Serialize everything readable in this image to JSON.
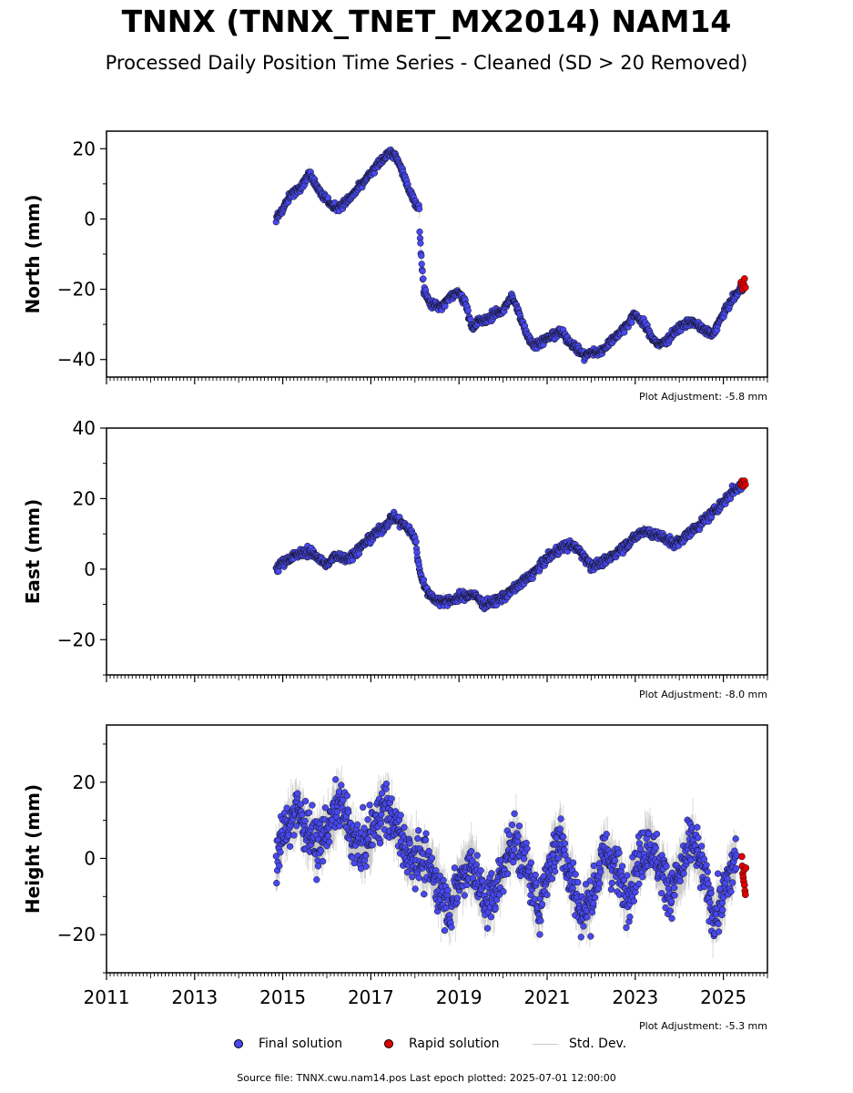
{
  "header": {
    "title": "TNNX (TNNX_TNET_MX2014) NAM14",
    "subtitle": "Processed Daily Position Time Series - Cleaned (SD > 20 Removed)"
  },
  "legend": {
    "final": "Final solution",
    "rapid": "Rapid solution",
    "std": "Std. Dev."
  },
  "footer": {
    "source": "Source file: TNNX.cwu.nam14.pos  Last epoch plotted: 2025-07-01 12:00:00"
  },
  "colors": {
    "final": "#4848f0",
    "rapid": "#e00000",
    "std": "#999999"
  },
  "chart_data": [
    {
      "type": "scatter",
      "ylabel": "North (mm)",
      "adjustment": "Plot Adjustment: -5.8 mm",
      "xlim": [
        2011,
        2026
      ],
      "ylim": [
        -45,
        25
      ],
      "yticks": [
        20,
        0,
        -20,
        -40
      ],
      "ytick_labels": [
        "20",
        "0",
        "−20",
        "−40"
      ],
      "noise": 0.8,
      "std_band": 1.2,
      "series": [
        {
          "name": "Final solution",
          "x": [
            2014.85,
            2015.0,
            2015.2,
            2015.45,
            2015.6,
            2015.75,
            2015.95,
            2016.2,
            2016.45,
            2016.6,
            2016.8,
            2017.0,
            2017.2,
            2017.4,
            2017.55,
            2017.7,
            2017.9,
            2018.1,
            2018.11,
            2018.2,
            2018.35,
            2018.6,
            2018.8,
            2019.0,
            2019.15,
            2019.3,
            2019.45,
            2019.6,
            2019.8,
            2020.0,
            2020.2,
            2020.4,
            2020.55,
            2020.7,
            2021.0,
            2021.3,
            2021.6,
            2021.85,
            2022.0,
            2022.2,
            2022.5,
            2022.75,
            2023.0,
            2023.2,
            2023.4,
            2023.55,
            2023.75,
            2024.0,
            2024.25,
            2024.5,
            2024.75,
            2025.0,
            2025.2,
            2025.45
          ],
          "y": [
            0,
            3,
            7,
            10,
            13,
            10,
            6,
            3,
            5,
            7,
            10,
            13,
            16,
            19,
            18,
            14,
            7,
            3,
            -5,
            -20,
            -24,
            -25,
            -22,
            -21,
            -24,
            -31,
            -29,
            -29,
            -27,
            -26,
            -22,
            -28,
            -33,
            -36,
            -34,
            -32,
            -36,
            -39,
            -38,
            -38,
            -34,
            -31,
            -27,
            -30,
            -34,
            -36,
            -34,
            -31,
            -29,
            -31,
            -33,
            -27,
            -23,
            -19
          ]
        },
        {
          "name": "Rapid solution",
          "x": [
            2025.4,
            2025.42,
            2025.44,
            2025.46,
            2025.48,
            2025.5
          ],
          "y": [
            -18,
            -19,
            -20,
            -18.5,
            -17,
            -19.5
          ]
        }
      ]
    },
    {
      "type": "scatter",
      "ylabel": "East (mm)",
      "adjustment": "Plot Adjustment: -8.0 mm",
      "xlim": [
        2011,
        2026
      ],
      "ylim": [
        -30,
        40
      ],
      "yticks": [
        40,
        20,
        0,
        -20
      ],
      "ytick_labels": [
        "40",
        "20",
        "0",
        "−20"
      ],
      "noise": 0.9,
      "std_band": 1.3,
      "series": [
        {
          "name": "Final solution",
          "x": [
            2014.85,
            2015.0,
            2015.3,
            2015.55,
            2015.75,
            2016.0,
            2016.2,
            2016.5,
            2016.75,
            2017.0,
            2017.3,
            2017.5,
            2017.8,
            2018.0,
            2018.1,
            2018.25,
            2018.5,
            2018.8,
            2019.0,
            2019.3,
            2019.6,
            2019.85,
            2020.1,
            2020.4,
            2020.7,
            2021.0,
            2021.3,
            2021.55,
            2021.75,
            2022.0,
            2022.3,
            2022.6,
            2022.9,
            2023.2,
            2023.4,
            2023.65,
            2023.9,
            2024.2,
            2024.5,
            2024.75,
            2025.0,
            2025.2,
            2025.45
          ],
          "y": [
            0,
            2,
            4,
            5,
            4,
            1,
            4,
            3,
            6,
            9,
            12,
            15,
            12,
            9,
            0,
            -6,
            -9,
            -9,
            -8,
            -7,
            -10,
            -9,
            -7,
            -4,
            -1,
            3,
            6,
            7,
            5,
            1,
            2,
            5,
            8,
            11,
            10,
            9,
            7,
            10,
            13,
            16,
            19,
            22,
            24
          ]
        },
        {
          "name": "Rapid solution",
          "x": [
            2025.4,
            2025.42,
            2025.44,
            2025.46,
            2025.48,
            2025.5
          ],
          "y": [
            24,
            25,
            24.5,
            23.5,
            25,
            24
          ]
        }
      ]
    },
    {
      "type": "scatter",
      "ylabel": "Height (mm)",
      "adjustment": "Plot Adjustment: -5.3 mm",
      "xlim": [
        2011,
        2026
      ],
      "ylim": [
        -30,
        35
      ],
      "yticks": [
        20,
        0,
        -20
      ],
      "ytick_labels": [
        "20",
        "0",
        "−20"
      ],
      "xticks": [
        2011,
        2013,
        2015,
        2017,
        2019,
        2021,
        2023,
        2025
      ],
      "xtick_labels": [
        "2011",
        "2013",
        "2015",
        "2017",
        "2019",
        "2021",
        "2023",
        "2025"
      ],
      "noise": 4.5,
      "std_band": 6,
      "series": [
        {
          "name": "Final solution",
          "x": [
            2014.85,
            2015.0,
            2015.3,
            2015.55,
            2015.8,
            2016.05,
            2016.3,
            2016.55,
            2016.8,
            2017.05,
            2017.3,
            2017.55,
            2017.8,
            2018.05,
            2018.3,
            2018.55,
            2018.8,
            2019.05,
            2019.3,
            2019.55,
            2019.8,
            2020.05,
            2020.3,
            2020.55,
            2020.8,
            2021.05,
            2021.3,
            2021.55,
            2021.8,
            2022.05,
            2022.3,
            2022.55,
            2022.8,
            2023.05,
            2023.3,
            2023.55,
            2023.8,
            2024.05,
            2024.3,
            2024.55,
            2024.8,
            2025.05,
            2025.3
          ],
          "y": [
            0,
            6,
            13,
            8,
            3,
            9,
            15,
            6,
            2,
            8,
            14,
            9,
            2,
            0,
            -2,
            -8,
            -13,
            -5,
            -1,
            -11,
            -10,
            0,
            5,
            -3,
            -13,
            -2,
            6,
            -6,
            -15,
            -9,
            2,
            -2,
            -10,
            -2,
            4,
            -2,
            -9,
            -3,
            5,
            -4,
            -16,
            -8,
            1
          ]
        },
        {
          "name": "Rapid solution",
          "x": [
            2025.42,
            2025.43,
            2025.44,
            2025.45,
            2025.46,
            2025.47,
            2025.48,
            2025.49,
            2025.5,
            2025.51
          ],
          "y": [
            0.5,
            -2,
            -4,
            -5,
            -6,
            -3,
            -7,
            -8.5,
            -9.5,
            -2.5
          ]
        }
      ]
    }
  ]
}
